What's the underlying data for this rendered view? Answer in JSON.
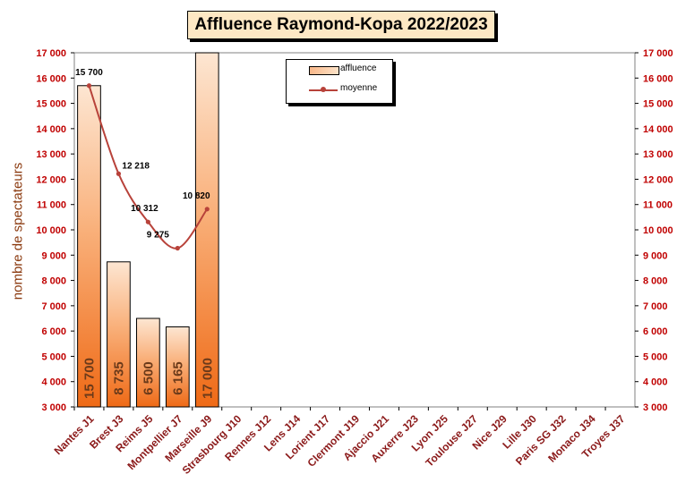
{
  "chart_data": {
    "type": "bar",
    "title": "Affluence Raymond-Kopa 2022/2023",
    "ylabel": "nombre de spectateurs",
    "ylim": [
      3000,
      17000
    ],
    "yticks": [
      "3 000",
      "4 000",
      "5 000",
      "6 000",
      "7 000",
      "8 000",
      "9 000",
      "10 000",
      "11 000",
      "12 000",
      "13 000",
      "14 000",
      "15 000",
      "16 000",
      "17 000"
    ],
    "categories": [
      "Nantes J1",
      "Brest J3",
      "Reims J5",
      "Montpellier J7",
      "Marseille J9",
      "Strasbourg J10",
      "Rennes J12",
      "Lens J14",
      "Lorient J17",
      "Clermont J19",
      "Ajaccio J21",
      "Auxerre J23",
      "Lyon J25",
      "Toulouse J27",
      "Nice J29",
      "Lille J30",
      "Paris SG J32",
      "Monaco J34",
      "Troyes J37"
    ],
    "series": [
      {
        "name": "affluence",
        "type": "bar",
        "values": [
          15700,
          8735,
          6500,
          6165,
          17000,
          null,
          null,
          null,
          null,
          null,
          null,
          null,
          null,
          null,
          null,
          null,
          null,
          null,
          null
        ],
        "labels": [
          "15 700",
          "8 735",
          "6 500",
          "6 165",
          "17 000"
        ]
      },
      {
        "name": "moyenne",
        "type": "line",
        "values": [
          15700,
          12218,
          10312,
          9275,
          10820,
          null,
          null,
          null,
          null,
          null,
          null,
          null,
          null,
          null,
          null,
          null,
          null,
          null,
          null
        ],
        "labels": [
          "15 700",
          "12 218",
          "10 312",
          "9 275",
          "10 820"
        ]
      }
    ],
    "legend": {
      "position": "top-center"
    },
    "colors": {
      "bar_dark": "#f07422",
      "bar_light": "#fde6d2",
      "line": "#b8423a",
      "axis_text": "#c00000",
      "category_text": "#8b1a1a",
      "ylabel": "#8b3a0f"
    }
  }
}
